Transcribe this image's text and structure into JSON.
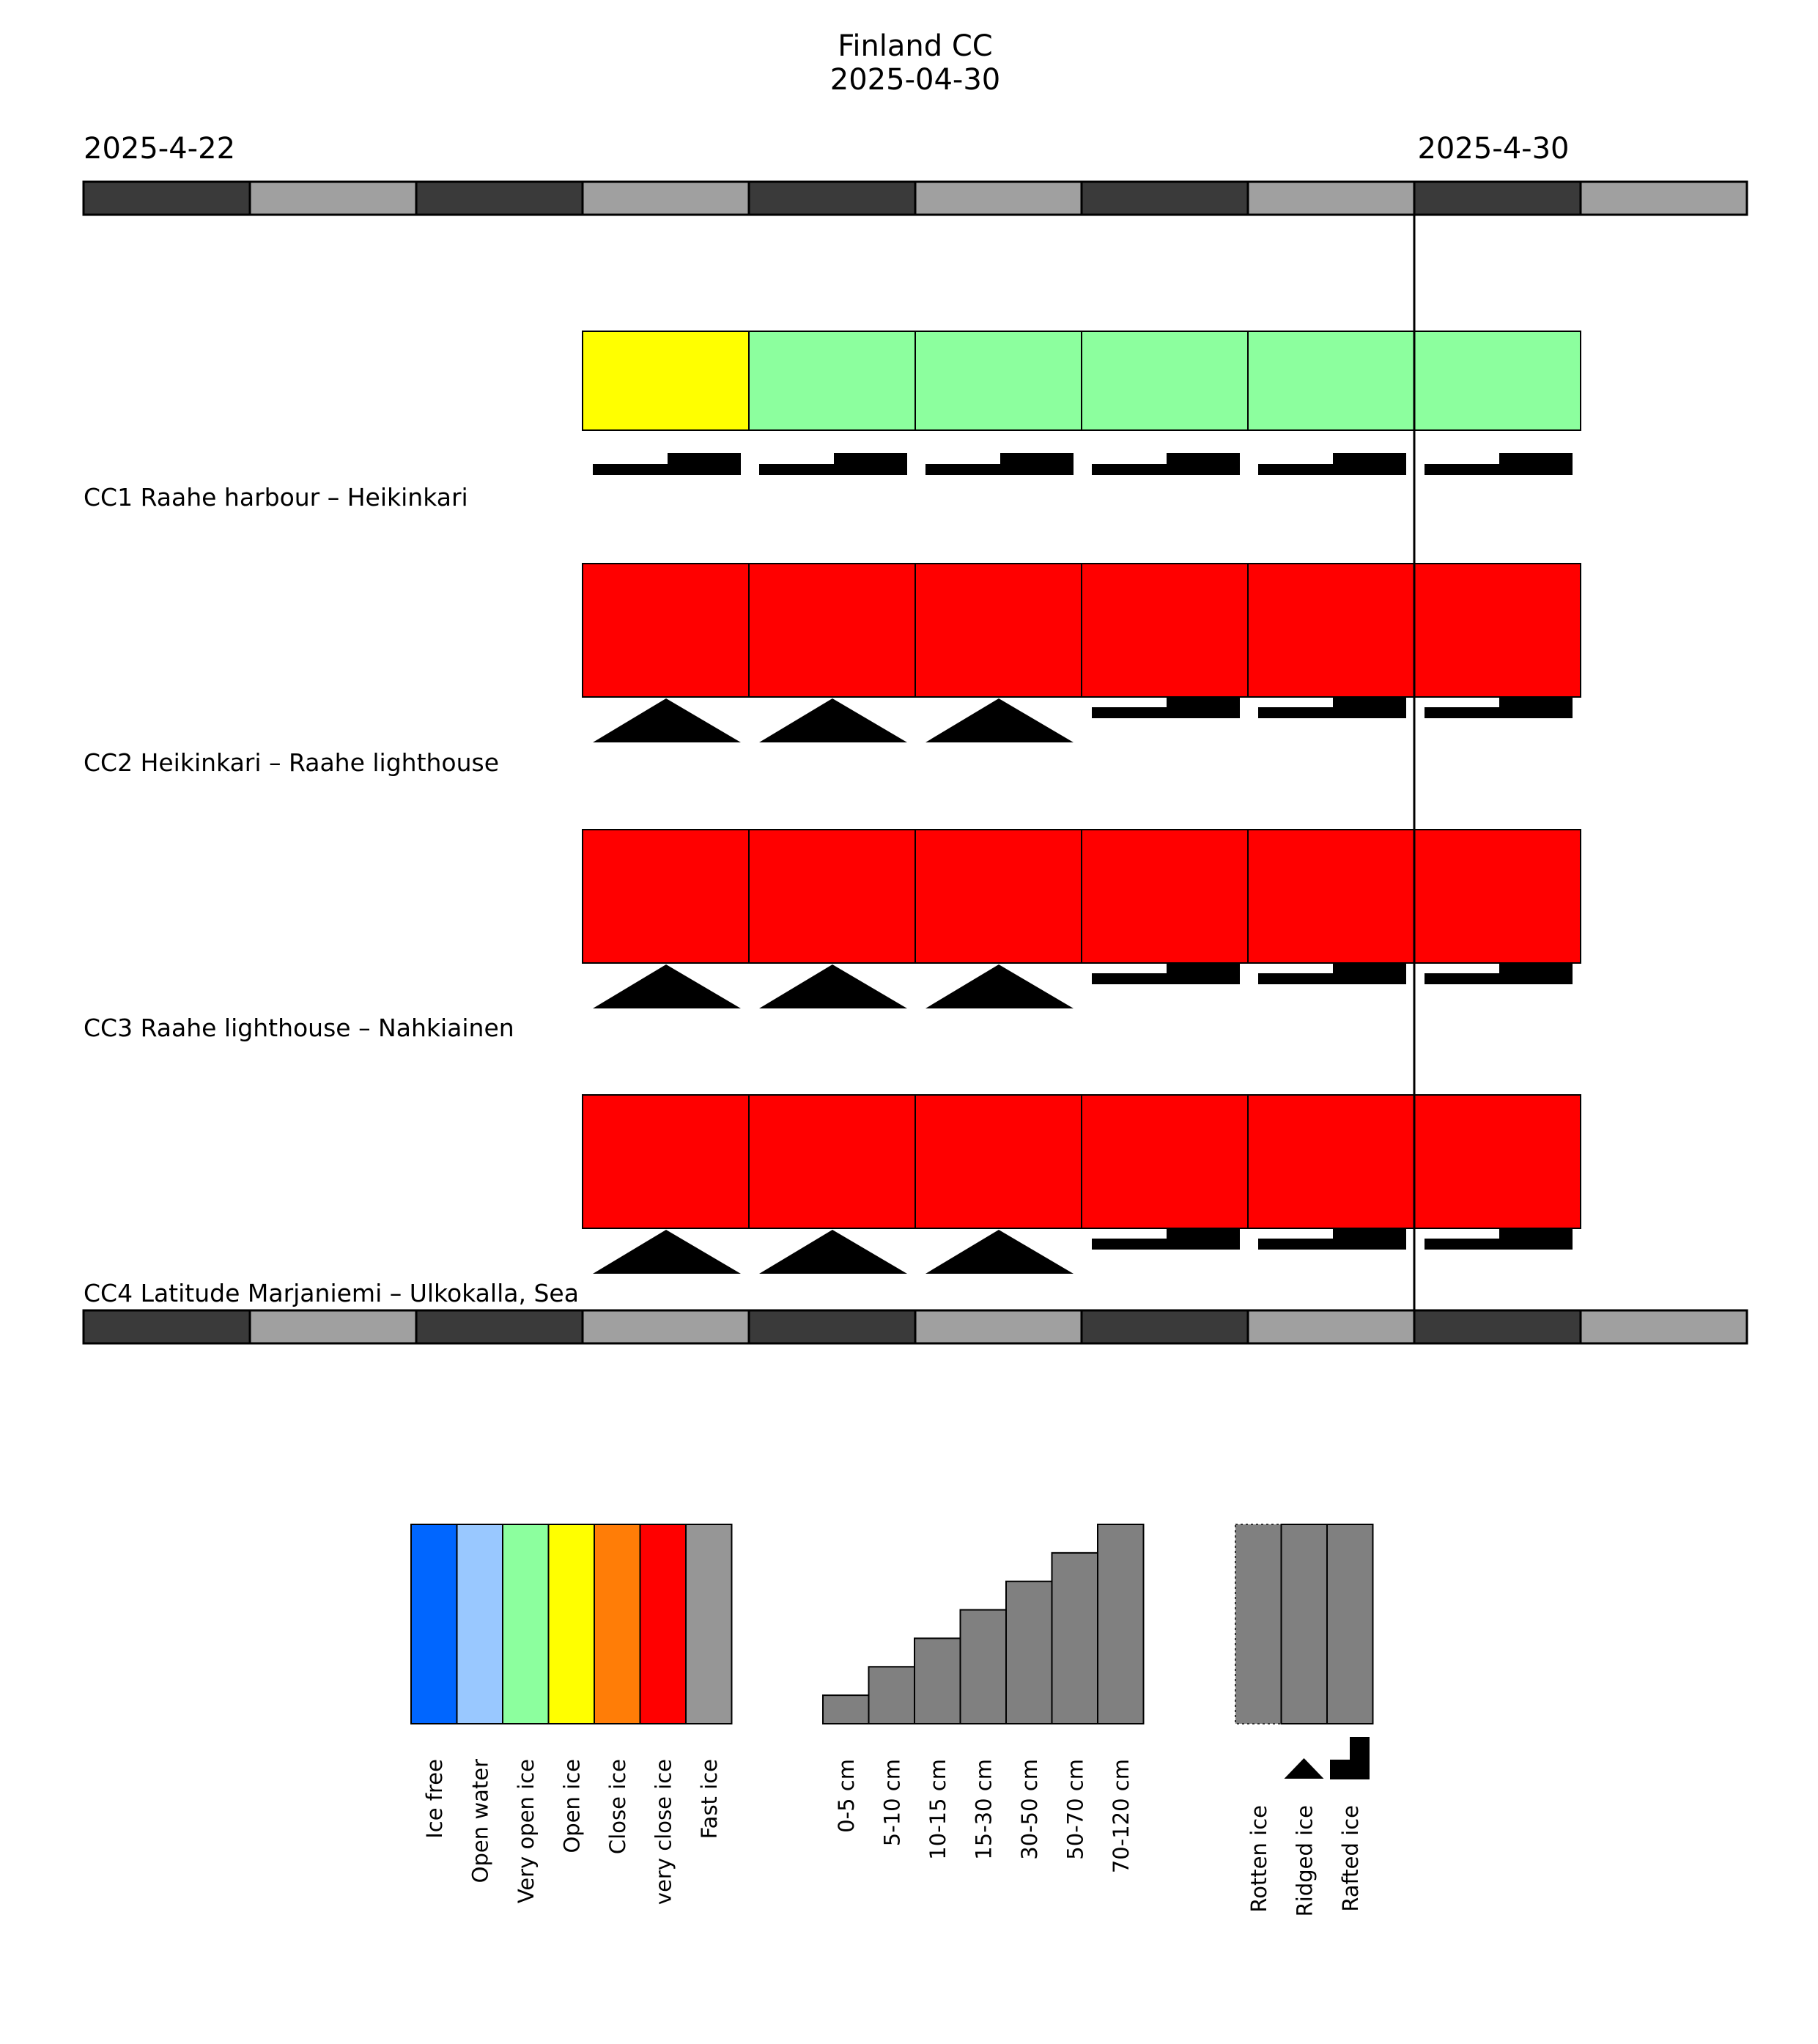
{
  "chart_data": {
    "type": "timeline",
    "title": "Finland CC",
    "subtitle": "2025-04-30",
    "date_start_label": "2025-4-22",
    "date_current_label": "2025-4-30",
    "days": [
      "2025-04-22",
      "2025-04-23",
      "2025-04-24",
      "2025-04-25",
      "2025-04-26",
      "2025-04-27",
      "2025-04-28",
      "2025-04-29",
      "2025-04-30",
      "2025-05-01"
    ],
    "current_day_index": 8,
    "colors": {
      "day_dark": "#3a3a3a",
      "day_light": "#a0a0a0",
      "red": "#ff0000",
      "very_open_green": "#8cff9e",
      "yellow": "#ffff00"
    },
    "sections": [
      {
        "label": "CC1 Raahe harbour – Heikinkari",
        "cells": [
          {
            "day_index": 3,
            "concentration": "Open ice",
            "symbol": "rafted"
          },
          {
            "day_index": 4,
            "concentration": "Very open ice",
            "symbol": "rafted"
          },
          {
            "day_index": 5,
            "concentration": "Very open ice",
            "symbol": "rafted"
          },
          {
            "day_index": 6,
            "concentration": "Very open ice",
            "symbol": "rafted"
          },
          {
            "day_index": 7,
            "concentration": "Very open ice",
            "symbol": "rafted"
          },
          {
            "day_index": 8,
            "concentration": "Very open ice",
            "symbol": "rafted"
          }
        ]
      },
      {
        "label": "CC2 Heikinkari – Raahe lighthouse",
        "cells": [
          {
            "day_index": 3,
            "concentration": "very close ice",
            "symbol": "ridged"
          },
          {
            "day_index": 4,
            "concentration": "very close ice",
            "symbol": "ridged"
          },
          {
            "day_index": 5,
            "concentration": "very close ice",
            "symbol": "ridged"
          },
          {
            "day_index": 6,
            "concentration": "very close ice",
            "symbol": "rafted"
          },
          {
            "day_index": 7,
            "concentration": "very close ice",
            "symbol": "rafted"
          },
          {
            "day_index": 8,
            "concentration": "very close ice",
            "symbol": "rafted"
          }
        ]
      },
      {
        "label": "CC3 Raahe lighthouse – Nahkiainen",
        "cells": [
          {
            "day_index": 3,
            "concentration": "very close ice",
            "symbol": "ridged"
          },
          {
            "day_index": 4,
            "concentration": "very close ice",
            "symbol": "ridged"
          },
          {
            "day_index": 5,
            "concentration": "very close ice",
            "symbol": "ridged"
          },
          {
            "day_index": 6,
            "concentration": "very close ice",
            "symbol": "rafted"
          },
          {
            "day_index": 7,
            "concentration": "very close ice",
            "symbol": "rafted"
          },
          {
            "day_index": 8,
            "concentration": "very close ice",
            "symbol": "rafted"
          }
        ]
      },
      {
        "label": "CC4 Latitude Marjaniemi – Ulkokalla, Sea",
        "cells": [
          {
            "day_index": 3,
            "concentration": "very close ice",
            "symbol": "ridged"
          },
          {
            "day_index": 4,
            "concentration": "very close ice",
            "symbol": "ridged"
          },
          {
            "day_index": 5,
            "concentration": "very close ice",
            "symbol": "ridged"
          },
          {
            "day_index": 6,
            "concentration": "very close ice",
            "symbol": "rafted"
          },
          {
            "day_index": 7,
            "concentration": "very close ice",
            "symbol": "rafted"
          },
          {
            "day_index": 8,
            "concentration": "very close ice",
            "symbol": "rafted"
          }
        ]
      }
    ],
    "legend_concentration": [
      {
        "label": "Ice free",
        "color": "#0066ff"
      },
      {
        "label": "Open water",
        "color": "#99c8ff"
      },
      {
        "label": "Very open ice",
        "color": "#8cff9e"
      },
      {
        "label": "Open ice",
        "color": "#ffff00"
      },
      {
        "label": "Close ice",
        "color": "#ff7d07"
      },
      {
        "label": "very close ice",
        "color": "#ff0000"
      },
      {
        "label": "Fast ice",
        "color": "#969696"
      }
    ],
    "legend_thickness": [
      {
        "label": "0-5 cm",
        "level": 1
      },
      {
        "label": "5-10 cm",
        "level": 2
      },
      {
        "label": "10-15 cm",
        "level": 3
      },
      {
        "label": "15-30 cm",
        "level": 4
      },
      {
        "label": "30-50 cm",
        "level": 5
      },
      {
        "label": "50-70 cm",
        "level": 6
      },
      {
        "label": "70-120 cm",
        "level": 7
      }
    ],
    "legend_thickness_color": "#808080",
    "legend_type": [
      {
        "label": "Rotten ice",
        "style": "dotted",
        "symbol": "none"
      },
      {
        "label": "Ridged ice",
        "style": "solid",
        "symbol": "ridged"
      },
      {
        "label": "Rafted ice",
        "style": "solid",
        "symbol": "rafted"
      }
    ]
  }
}
